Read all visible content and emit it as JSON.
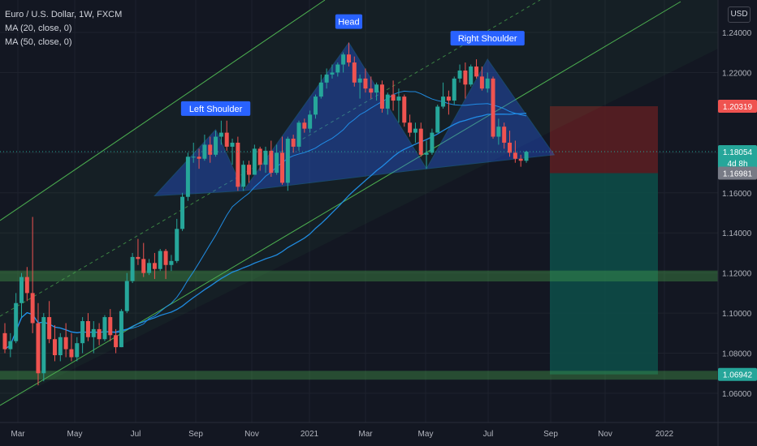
{
  "header": {
    "symbol": "Euro / U.S. Dollar, 1W, FXCM",
    "ma20": "MA (20, close, 0)",
    "ma50": "MA (50, close, 0)",
    "currency": "USD"
  },
  "colors": {
    "background": "#131722",
    "up": "#26a69a",
    "down": "#ef5350",
    "channel": "#4caf50",
    "pattern_fill": "#2962ff",
    "ma": "#2196f3",
    "zone": "#4caf50",
    "stop_zone": "#5d1f22",
    "target_zone": "#0d4f49"
  },
  "chart_data": {
    "type": "candlestick",
    "title": "Euro / U.S. Dollar, 1W, FXCM",
    "x_tick_labels": [
      "Mar",
      "May",
      "Jul",
      "Sep",
      "Nov",
      "2021",
      "Mar",
      "May",
      "Jul",
      "Sep",
      "Nov",
      "2022"
    ],
    "y_tick_labels": [
      "1.24000",
      "1.22000",
      "1.18000",
      "1.16000",
      "1.14000",
      "1.12000",
      "1.10000",
      "1.08000",
      "1.06000"
    ],
    "ylim": [
      1.045,
      1.255
    ],
    "grid": true,
    "annotations": [
      {
        "label": "Left Shoulder",
        "price": 1.1915
      },
      {
        "label": "Head",
        "price": 1.2349
      },
      {
        "label": "Right Shoulder",
        "price": 1.2266
      }
    ],
    "price_labels": [
      {
        "value": "1.20319",
        "kind": "stop"
      },
      {
        "value": "1.18054",
        "kind": "last",
        "countdown": "4d 8h"
      },
      {
        "value": "1.16981",
        "kind": "entry"
      },
      {
        "value": "1.06942",
        "kind": "target"
      }
    ],
    "support_zones": [
      {
        "from": 1.116,
        "to": 1.121
      },
      {
        "from": 1.067,
        "to": 1.071
      }
    ],
    "position": {
      "stop": 1.20319,
      "entry": 1.16981,
      "target": 1.06942
    },
    "candles": [
      [
        1.09,
        1.095,
        1.08,
        1.082
      ],
      [
        1.082,
        1.09,
        1.078,
        1.086
      ],
      [
        1.086,
        1.11,
        1.085,
        1.105
      ],
      [
        1.105,
        1.12,
        1.098,
        1.118
      ],
      [
        1.118,
        1.123,
        1.106,
        1.11
      ],
      [
        1.11,
        1.148,
        1.09,
        1.095
      ],
      [
        1.095,
        1.105,
        1.064,
        1.07
      ],
      [
        1.07,
        1.1,
        1.066,
        1.098
      ],
      [
        1.098,
        1.106,
        1.085,
        1.087
      ],
      [
        1.087,
        1.094,
        1.076,
        1.079
      ],
      [
        1.079,
        1.09,
        1.076,
        1.088
      ],
      [
        1.088,
        1.095,
        1.078,
        1.082
      ],
      [
        1.082,
        1.09,
        1.076,
        1.078
      ],
      [
        1.078,
        1.088,
        1.076,
        1.085
      ],
      [
        1.085,
        1.098,
        1.08,
        1.096
      ],
      [
        1.096,
        1.1,
        1.086,
        1.088
      ],
      [
        1.088,
        1.096,
        1.08,
        1.092
      ],
      [
        1.092,
        1.095,
        1.084,
        1.087
      ],
      [
        1.087,
        1.099,
        1.086,
        1.098
      ],
      [
        1.098,
        1.102,
        1.086,
        1.089
      ],
      [
        1.089,
        1.092,
        1.08,
        1.083
      ],
      [
        1.083,
        1.102,
        1.083,
        1.101
      ],
      [
        1.101,
        1.12,
        1.1,
        1.116
      ],
      [
        1.116,
        1.13,
        1.115,
        1.128
      ],
      [
        1.128,
        1.137,
        1.124,
        1.127
      ],
      [
        1.127,
        1.135,
        1.118,
        1.12
      ],
      [
        1.12,
        1.127,
        1.119,
        1.125
      ],
      [
        1.125,
        1.13,
        1.117,
        1.122
      ],
      [
        1.122,
        1.132,
        1.121,
        1.131
      ],
      [
        1.131,
        1.132,
        1.117,
        1.124
      ],
      [
        1.124,
        1.129,
        1.121,
        1.126
      ],
      [
        1.126,
        1.147,
        1.125,
        1.142
      ],
      [
        1.142,
        1.16,
        1.141,
        1.158
      ],
      [
        1.158,
        1.18,
        1.156,
        1.178
      ],
      [
        1.178,
        1.185,
        1.175,
        1.178
      ],
      [
        1.178,
        1.182,
        1.172,
        1.177
      ],
      [
        1.177,
        1.189,
        1.176,
        1.184
      ],
      [
        1.184,
        1.188,
        1.175,
        1.179
      ],
      [
        1.179,
        1.191,
        1.178,
        1.188
      ],
      [
        1.188,
        1.196,
        1.184,
        1.19
      ],
      [
        1.19,
        1.196,
        1.181,
        1.183
      ],
      [
        1.183,
        1.187,
        1.174,
        1.185
      ],
      [
        1.185,
        1.188,
        1.161,
        1.163
      ],
      [
        1.163,
        1.176,
        1.161,
        1.174
      ],
      [
        1.174,
        1.176,
        1.165,
        1.169
      ],
      [
        1.169,
        1.184,
        1.169,
        1.182
      ],
      [
        1.182,
        1.183,
        1.171,
        1.174
      ],
      [
        1.174,
        1.183,
        1.17,
        1.181
      ],
      [
        1.181,
        1.186,
        1.168,
        1.17
      ],
      [
        1.17,
        1.184,
        1.169,
        1.18
      ],
      [
        1.18,
        1.188,
        1.164,
        1.165
      ],
      [
        1.165,
        1.188,
        1.161,
        1.187
      ],
      [
        1.187,
        1.189,
        1.18,
        1.183
      ],
      [
        1.183,
        1.196,
        1.181,
        1.195
      ],
      [
        1.195,
        1.197,
        1.19,
        1.192
      ],
      [
        1.192,
        1.201,
        1.19,
        1.199
      ],
      [
        1.199,
        1.209,
        1.197,
        1.208
      ],
      [
        1.208,
        1.219,
        1.207,
        1.215
      ],
      [
        1.215,
        1.222,
        1.212,
        1.219
      ],
      [
        1.219,
        1.224,
        1.217,
        1.22
      ],
      [
        1.22,
        1.225,
        1.218,
        1.224
      ],
      [
        1.224,
        1.23,
        1.22,
        1.229
      ],
      [
        1.229,
        1.2349,
        1.223,
        1.225
      ],
      [
        1.225,
        1.228,
        1.213,
        1.215
      ],
      [
        1.215,
        1.219,
        1.207,
        1.217
      ],
      [
        1.217,
        1.222,
        1.21,
        1.212
      ],
      [
        1.212,
        1.218,
        1.207,
        1.21
      ],
      [
        1.21,
        1.215,
        1.206,
        1.214
      ],
      [
        1.214,
        1.216,
        1.2,
        1.202
      ],
      [
        1.202,
        1.21,
        1.199,
        1.209
      ],
      [
        1.209,
        1.216,
        1.201,
        1.206
      ],
      [
        1.206,
        1.212,
        1.195,
        1.208
      ],
      [
        1.208,
        1.209,
        1.193,
        1.195
      ],
      [
        1.195,
        1.199,
        1.188,
        1.19
      ],
      [
        1.19,
        1.195,
        1.185,
        1.192
      ],
      [
        1.192,
        1.195,
        1.178,
        1.179
      ],
      [
        1.179,
        1.186,
        1.172,
        1.18
      ],
      [
        1.18,
        1.192,
        1.179,
        1.19
      ],
      [
        1.19,
        1.204,
        1.19,
        1.203
      ],
      [
        1.203,
        1.215,
        1.202,
        1.208
      ],
      [
        1.208,
        1.211,
        1.199,
        1.206
      ],
      [
        1.206,
        1.218,
        1.204,
        1.217
      ],
      [
        1.217,
        1.224,
        1.215,
        1.221
      ],
      [
        1.221,
        1.225,
        1.207,
        1.214
      ],
      [
        1.214,
        1.224,
        1.213,
        1.223
      ],
      [
        1.223,
        1.2266,
        1.217,
        1.218
      ],
      [
        1.218,
        1.223,
        1.211,
        1.212
      ],
      [
        1.212,
        1.22,
        1.21,
        1.217
      ],
      [
        1.217,
        1.218,
        1.187,
        1.188
      ],
      [
        1.188,
        1.197,
        1.184,
        1.193
      ],
      [
        1.193,
        1.195,
        1.182,
        1.185
      ],
      [
        1.185,
        1.191,
        1.178,
        1.18
      ],
      [
        1.18,
        1.186,
        1.175,
        1.177
      ],
      [
        1.177,
        1.179,
        1.173,
        1.176
      ],
      [
        1.176,
        1.181,
        1.175,
        1.1805
      ]
    ]
  }
}
